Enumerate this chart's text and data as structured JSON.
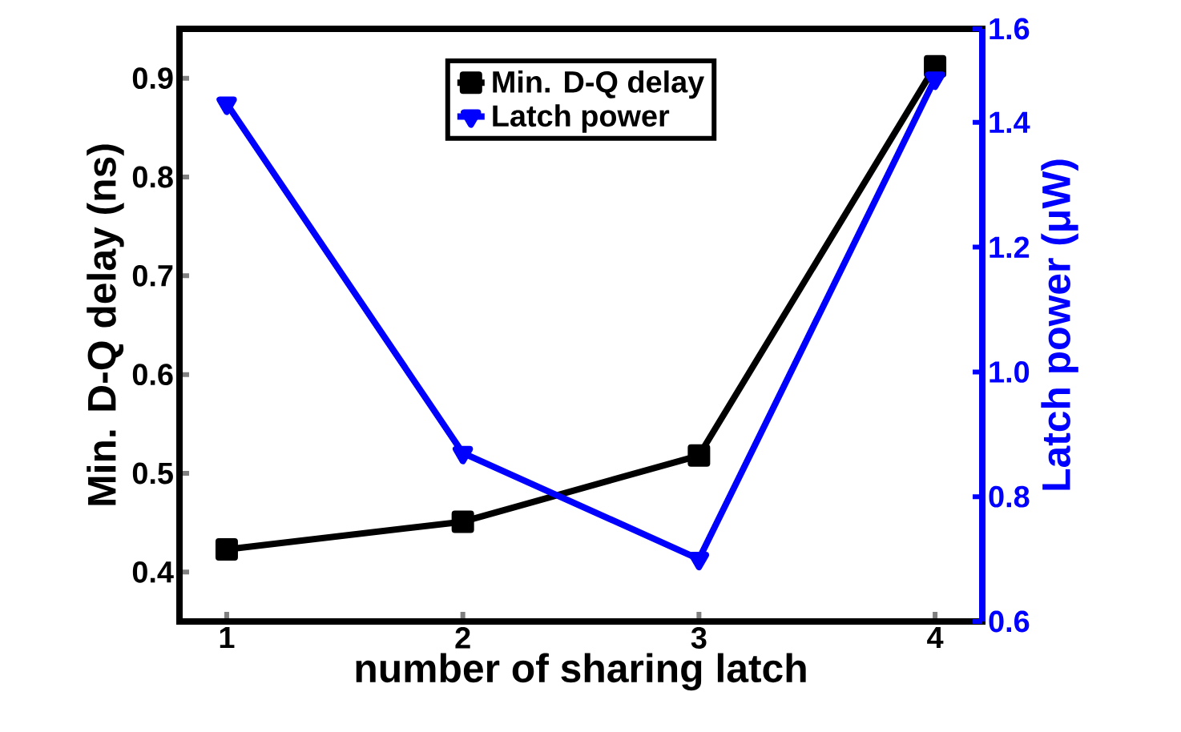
{
  "chart_data": {
    "type": "line",
    "xlabel": "number of sharing latch",
    "ylabel": "Min. D-Q delay (ns)",
    "y2label": "Latch power (μW)",
    "x": [
      1,
      2,
      3,
      4
    ],
    "series": [
      {
        "name": "Min. D-Q delay",
        "color": "#000000",
        "marker": "square",
        "values": [
          0.423,
          0.451,
          0.518,
          0.912
        ]
      },
      {
        "name": "Latch power",
        "color": "#0000ff",
        "marker": "triangle",
        "axis": "y2",
        "values": [
          1.43,
          0.87,
          0.7,
          1.47
        ]
      }
    ],
    "xlim": [
      0.8,
      4.2
    ],
    "xticks": [
      1,
      2,
      3,
      4
    ],
    "ylim": [
      0.35,
      0.95
    ],
    "yticks": [
      0.4,
      0.5,
      0.6,
      0.7,
      0.8,
      0.9
    ],
    "y2lim": [
      0.6,
      1.55
    ],
    "y2ticks": [
      0.6,
      0.8,
      {
        "value": 1.0,
        "label": "1.0"
      },
      1.2,
      1.4,
      {
        "value": 1.55,
        "label": "1.6"
      }
    ],
    "legend": "top",
    "line_style": "solid"
  }
}
